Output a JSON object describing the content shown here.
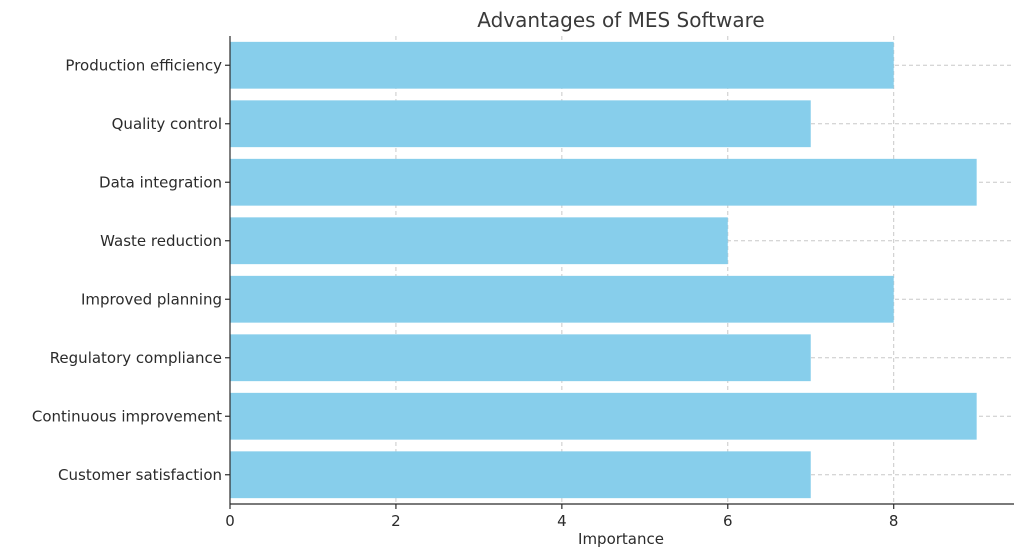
{
  "chart_data": {
    "type": "bar",
    "orientation": "horizontal",
    "title": "Advantages of MES Software",
    "xlabel": "Importance",
    "ylabel": "",
    "categories": [
      "Production efficiency",
      "Quality control",
      "Data integration",
      "Waste reduction",
      "Improved planning",
      "Regulatory compliance",
      "Continuous improvement",
      "Customer satisfaction"
    ],
    "values": [
      8,
      7,
      9,
      6,
      8,
      7,
      9,
      7
    ],
    "xlim": [
      0,
      9.45
    ],
    "xticks": [
      0,
      2,
      4,
      6,
      8
    ],
    "grid": true,
    "bar_color": "#87ceeb"
  }
}
